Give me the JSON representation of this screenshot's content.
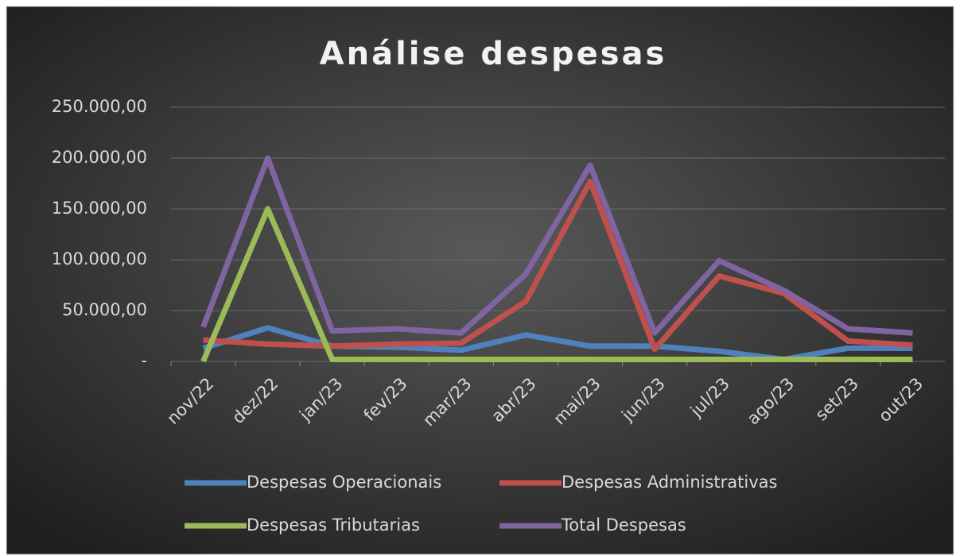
{
  "chart_data": {
    "type": "line",
    "title": "Análise despesas",
    "categories": [
      "nov/22",
      "dez/22",
      "jan/23",
      "fev/23",
      "mar/23",
      "abr/23",
      "mai/23",
      "jun/23",
      "jul/23",
      "ago/23",
      "set/23",
      "out/23"
    ],
    "series": [
      {
        "name": "Despesas Operacionais",
        "color": "#4f81bd",
        "values": [
          13000,
          33000,
          15000,
          14000,
          11000,
          26000,
          15000,
          15000,
          10000,
          2000,
          13000,
          13000
        ]
      },
      {
        "name": "Despesas Administrativas",
        "color": "#c0504d",
        "values": [
          21000,
          17000,
          15000,
          17000,
          18000,
          59000,
          177000,
          12000,
          84000,
          67000,
          20000,
          16000
        ]
      },
      {
        "name": "Despesas Tributarias",
        "color": "#9bbb59",
        "values": [
          0,
          150000,
          2000,
          2000,
          2000,
          2000,
          2000,
          2000,
          2000,
          2000,
          2000,
          2000
        ]
      },
      {
        "name": "Total Despesas",
        "color": "#8064a2",
        "values": [
          34000,
          200000,
          30000,
          32000,
          28000,
          86000,
          193000,
          28000,
          99000,
          70000,
          32000,
          28000
        ]
      }
    ],
    "ylim": [
      0,
      250000
    ],
    "yticks": [
      {
        "value": 0,
        "label": "-"
      },
      {
        "value": 50000,
        "label": "50.000,00"
      },
      {
        "value": 100000,
        "label": "100.000,00"
      },
      {
        "value": 150000,
        "label": "150.000,00"
      },
      {
        "value": 200000,
        "label": "200.000,00"
      },
      {
        "value": 250000,
        "label": "250.000,00"
      }
    ],
    "grid": true
  }
}
